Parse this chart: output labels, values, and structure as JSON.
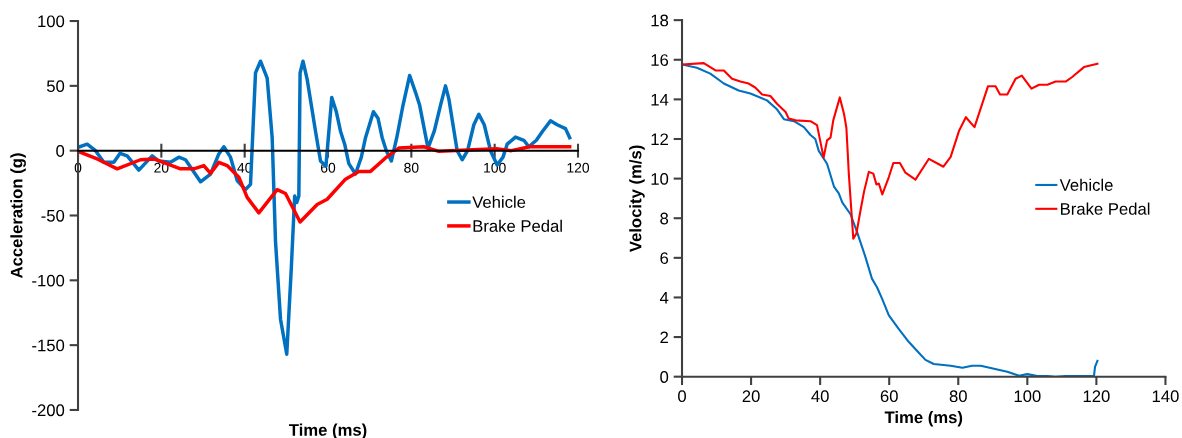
{
  "chart_data": [
    {
      "type": "line",
      "xlabel": "Time (ms)",
      "ylabel": "Acceleration (g)",
      "xlim": [
        0,
        120
      ],
      "xticks": [
        0,
        20,
        40,
        60,
        80,
        100,
        120
      ],
      "ylim": [
        -200,
        100
      ],
      "yticks": [
        -200,
        -150,
        -100,
        -50,
        0,
        50,
        100
      ],
      "grid": false,
      "legend": "right",
      "series": [
        {
          "name": "Vehicle",
          "color": "#0070c0",
          "x": [
            0,
            2.2,
            4.2,
            6.2,
            8.6,
            10.1,
            11.8,
            14.6,
            17.8,
            19.4,
            22.2,
            24.2,
            25.8,
            29.4,
            31.8,
            33.8,
            35,
            36.6,
            38.2,
            40.2,
            41.4,
            42.6,
            43.8,
            45.4,
            46.6,
            47.4,
            48.6,
            50.1,
            51.2,
            52,
            52.5,
            53,
            53.3,
            54,
            55,
            56,
            57,
            58.2,
            59.5,
            60.9,
            62,
            63,
            64,
            65,
            66.6,
            68,
            69,
            70.9,
            72,
            73,
            74,
            75.2,
            76.5,
            78,
            79.6,
            81,
            82,
            84,
            85.5,
            87,
            88.2,
            89,
            90,
            91,
            92.2,
            93.5,
            95,
            96.2,
            97.5,
            99,
            100.6,
            102,
            103,
            105,
            107,
            108.2,
            110,
            111.5,
            113.4,
            115,
            117,
            118
          ],
          "values": [
            2.5,
            5,
            0,
            -9,
            -9,
            -2,
            -4,
            -15,
            -4,
            -8,
            -9,
            -5,
            -7,
            -24,
            -18,
            -2.5,
            3,
            -5,
            -23,
            -30,
            -26,
            60,
            69,
            56,
            10,
            -70,
            -130,
            -157,
            -90,
            -35,
            -40,
            -35,
            60,
            69,
            55,
            35,
            15,
            -8,
            -12,
            41,
            30,
            15,
            5,
            -10,
            -18,
            -5,
            10,
            30,
            25,
            10,
            0,
            -8,
            10,
            35,
            58,
            45,
            35,
            2,
            15,
            35,
            50,
            40,
            20,
            0,
            -7,
            0,
            20,
            28,
            20,
            0,
            -11,
            -5,
            5,
            10.5,
            8,
            3,
            8,
            15,
            23,
            20,
            17,
            10
          ]
        },
        {
          "name": "Brake Pedal",
          "color": "#ff0000",
          "x": [
            0,
            4.6,
            9.4,
            15,
            18.2,
            24.6,
            27.8,
            30.2,
            31.8,
            33.8,
            35.8,
            38.6,
            40.6,
            43.4,
            47.8,
            49.8,
            53.3,
            57.4,
            59.8,
            64.2,
            67.4,
            70.2,
            73.8,
            77,
            83,
            86.6,
            100.4,
            104,
            108.4,
            118
          ],
          "values": [
            -0.5,
            -6.4,
            -14,
            -7,
            -6.4,
            -14,
            -14,
            -11.5,
            -17.5,
            -9,
            -11.5,
            -20.5,
            -36,
            -48,
            -30,
            -33,
            -55,
            -41.5,
            -37.5,
            -22,
            -16,
            -16,
            -5.6,
            2,
            3,
            -0.5,
            1.5,
            0,
            3,
            3
          ]
        }
      ]
    },
    {
      "type": "line",
      "xlabel": "Time (ms)",
      "ylabel": "Velocity (m/s)",
      "xlim": [
        0,
        140
      ],
      "xticks": [
        0,
        20,
        40,
        60,
        80,
        100,
        120,
        140
      ],
      "ylim": [
        0,
        18
      ],
      "yticks": [
        0,
        2,
        4,
        6,
        8,
        10,
        12,
        14,
        16,
        18
      ],
      "grid": false,
      "legend": "right",
      "series": [
        {
          "name": "Vehicle",
          "color": "#0070c0",
          "x": [
            0,
            4.3,
            8.2,
            12.1,
            16.4,
            19.8,
            24.6,
            27.5,
            29.5,
            32.4,
            35.3,
            37.2,
            38.6,
            39.6,
            42,
            44,
            45.4,
            46.4,
            48.8,
            50.7,
            53.1,
            55,
            56.5,
            57.9,
            59.9,
            62.8,
            65.7,
            68.1,
            70.5,
            72.9,
            77.8,
            81.2,
            84,
            86.5,
            94.2,
            97.6,
            100,
            102.9,
            105.8,
            108.2,
            111.1,
            119.3,
            119.6,
            120.3
          ],
          "values": [
            15.76,
            15.6,
            15.3,
            14.8,
            14.45,
            14.3,
            13.95,
            13.5,
            13.0,
            12.9,
            12.6,
            12.2,
            12.0,
            11.4,
            10.75,
            9.6,
            9.25,
            8.8,
            8.2,
            7.3,
            6.05,
            4.95,
            4.5,
            3.95,
            3.1,
            2.4,
            1.75,
            1.3,
            0.85,
            0.64,
            0.55,
            0.45,
            0.55,
            0.55,
            0.25,
            0.05,
            0.13,
            0.03,
            0.03,
            0,
            0.03,
            0.03,
            0.5,
            0.8
          ]
        },
        {
          "name": "Brake Pedal",
          "color": "#ff0000",
          "x": [
            0,
            6.3,
            9.7,
            12.1,
            14.5,
            16.9,
            19.3,
            21.2,
            23.2,
            25.6,
            27.5,
            30,
            30.9,
            32.9,
            37.2,
            39.1,
            41,
            42,
            43,
            43.8,
            45.7,
            46.9,
            47.6,
            48,
            48.3,
            49.6,
            50.5,
            51.7,
            52.7,
            54.1,
            55.4,
            56.3,
            57,
            58,
            59.9,
            61.2,
            63.1,
            64.7,
            67.6,
            71.5,
            75.7,
            77.8,
            80.2,
            82.2,
            84.7,
            88.6,
            90.8,
            92.1,
            94.2,
            96.6,
            98.4,
            101.2,
            103.4,
            105.8,
            108.2,
            111.1,
            113,
            116.4,
            120.3
          ],
          "values": [
            15.76,
            15.83,
            15.46,
            15.46,
            15.04,
            14.9,
            14.8,
            14.6,
            14.25,
            14.17,
            13.78,
            13.36,
            13.03,
            12.94,
            12.9,
            12.7,
            11.06,
            11.93,
            12.07,
            12.94,
            14.1,
            13.28,
            12.57,
            11.26,
            10.25,
            6.97,
            7.23,
            8.4,
            9.33,
            10.34,
            10.25,
            9.7,
            9.75,
            9.2,
            10.08,
            10.79,
            10.79,
            10.3,
            9.95,
            11.0,
            10.6,
            11.1,
            12.4,
            13.1,
            12.6,
            14.66,
            14.66,
            14.25,
            14.25,
            15.04,
            15.2,
            14.54,
            14.74,
            14.74,
            14.9,
            14.9,
            15.13,
            15.63,
            15.8
          ]
        }
      ]
    }
  ]
}
